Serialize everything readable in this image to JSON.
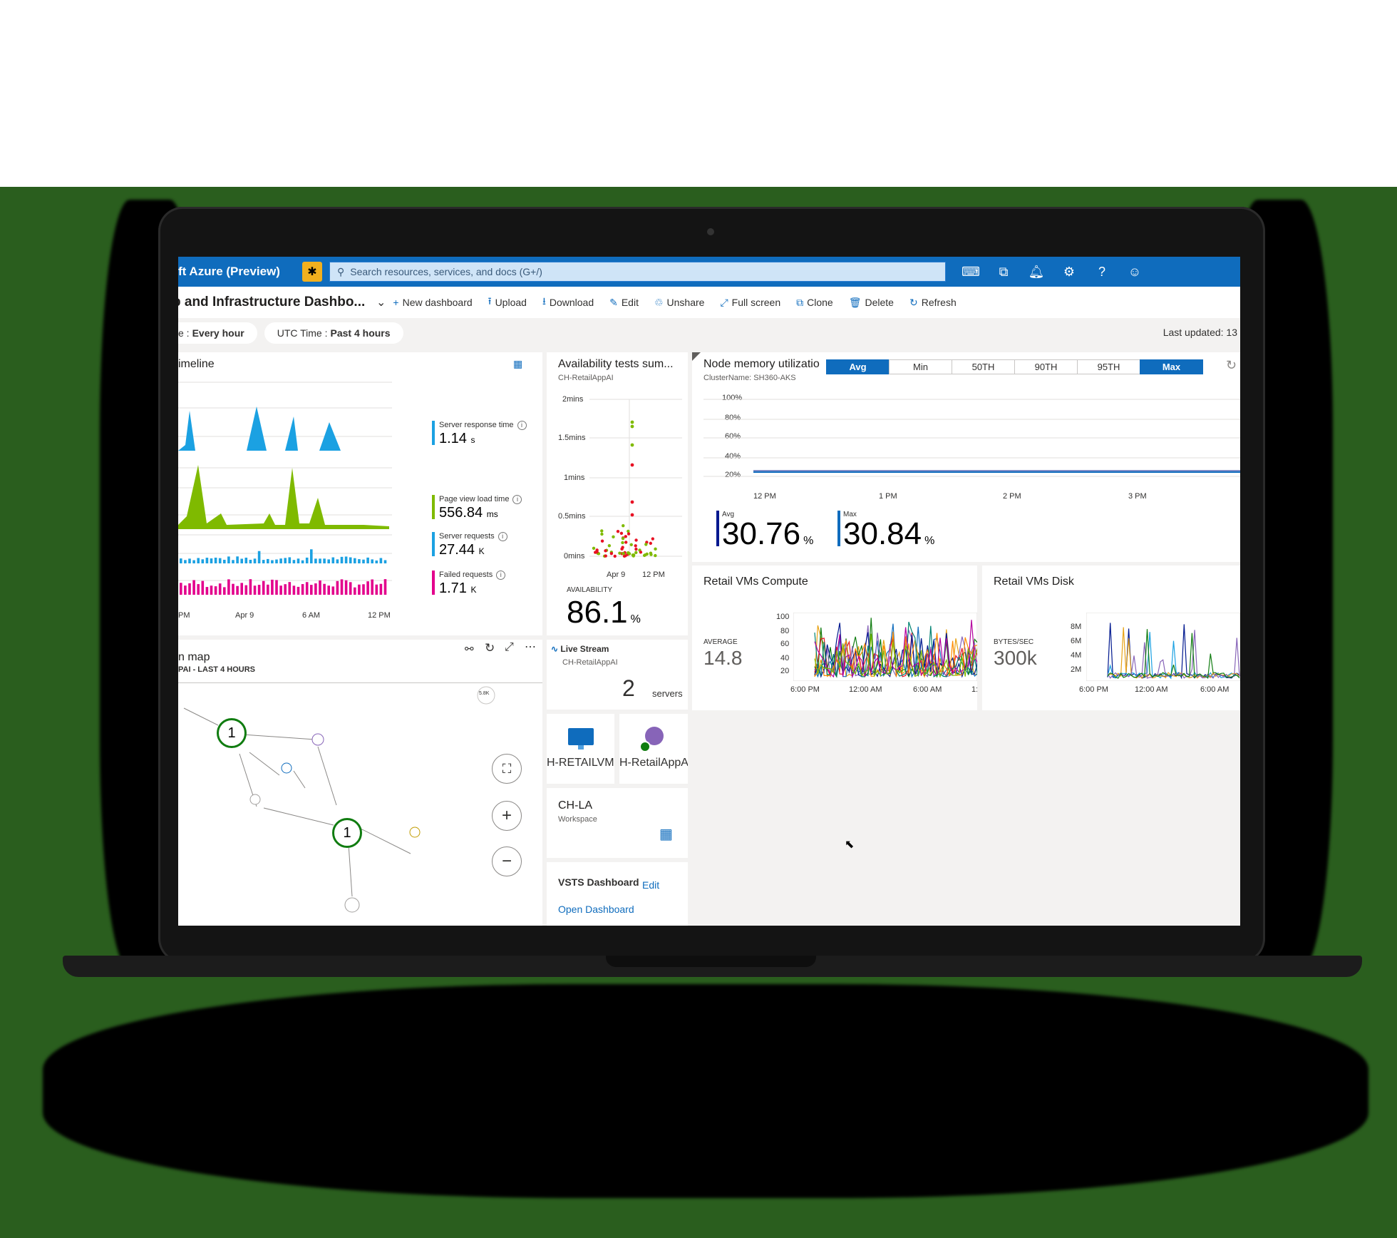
{
  "topbar": {
    "brand": "ft Azure (Preview)",
    "search_placeholder": "Search resources, services, and docs (G+/)",
    "icons": [
      "cloud-shell-icon",
      "directory-filter-icon",
      "bell-icon",
      "gear-icon",
      "help-icon",
      "feedback-smiley-icon"
    ]
  },
  "commandbar": {
    "dashboard_title": "p and Infrastructure Dashbo...",
    "new_dashboard": "New dashboard",
    "upload": "Upload",
    "download": "Download",
    "edit": "Edit",
    "unshare": "Unshare",
    "full_screen": "Full screen",
    "clone": "Clone",
    "delete": "Delete",
    "refresh": "Refresh"
  },
  "filters": {
    "refresh_prefix": "e :",
    "refresh_value": "Every hour",
    "time_prefix": "UTC Time :",
    "time_value": "Past 4 hours",
    "last_updated": "Last updated: 13"
  },
  "timeline": {
    "title": "imeline",
    "x_ticks": [
      "PM",
      "Apr 9",
      "6 AM",
      "12 PM"
    ],
    "metrics": [
      {
        "label": "Server response time",
        "value": "1.14",
        "unit": "s",
        "color": "#1ba1e2"
      },
      {
        "label": "Page view load time",
        "value": "556.84",
        "unit": "ms",
        "color": "#7fba00"
      },
      {
        "label": "Server requests",
        "value": "27.44",
        "unit": "K",
        "color": "#1ba1e2"
      },
      {
        "label": "Failed requests",
        "value": "1.71",
        "unit": "K",
        "color": "#e3008c"
      }
    ]
  },
  "availability": {
    "title": "Availability tests sum...",
    "subtitle": "CH-RetailAppAI",
    "y_ticks": [
      "2mins",
      "1.5mins",
      "1mins",
      "0.5mins",
      "0mins"
    ],
    "x_ticks": [
      "Apr 9",
      "12 PM"
    ],
    "label": "AVAILABILITY",
    "value": "86.1",
    "unit": "%"
  },
  "node_memory": {
    "title": "Node memory utilizatio",
    "subtitle": "ClusterName: SH360-AKS",
    "segments": [
      "Avg",
      "Min",
      "50TH",
      "90TH",
      "95TH",
      "Max"
    ],
    "y_ticks": [
      "100%",
      "80%",
      "60%",
      "40%",
      "20%"
    ],
    "x_ticks": [
      "12 PM",
      "1 PM",
      "2 PM",
      "3 PM"
    ],
    "avg_label": "Avg",
    "avg_value": "30.76",
    "max_label": "Max",
    "max_value": "30.84",
    "unit": "%"
  },
  "retail_compute": {
    "title": "Retail VMs Compute",
    "stat_label": "AVERAGE",
    "stat_value": "14.8",
    "y_ticks": [
      "100",
      "80",
      "60",
      "40",
      "20"
    ],
    "x_ticks": [
      "6:00 PM",
      "12:00 AM",
      "6:00 AM",
      "1:"
    ]
  },
  "retail_disk": {
    "title": "Retail VMs Disk",
    "stat_label": "BYTES/SEC",
    "stat_value": "300k",
    "y_ticks": [
      "8M",
      "6M",
      "4M",
      "2M"
    ],
    "x_ticks": [
      "6:00 PM",
      "12:00 AM",
      "6:00 AM"
    ]
  },
  "app_map": {
    "title": "n map",
    "subtitle": "PAI - LAST 4 HOURS",
    "node_top_label": "5.8K",
    "node_a_count": "1",
    "node_b_count": "1"
  },
  "live_stream": {
    "title": "Live Stream",
    "subtitle": "CH-RetailAppAI",
    "value": "2",
    "unit": "servers"
  },
  "resource_tiles": {
    "vm_label": "H-RETAILVMC",
    "ai_label": "H-RetailAppA"
  },
  "workspace": {
    "title": "CH-LA",
    "subtitle": "Workspace"
  },
  "vsts": {
    "title": "VSTS Dashboard",
    "edit": "Edit",
    "open": "Open Dashboard"
  },
  "colors": {
    "azure_blue": "#0f6cbd",
    "response_blue": "#1ba1e2",
    "pageview_green": "#7fba00",
    "failed_magenta": "#e3008c"
  }
}
